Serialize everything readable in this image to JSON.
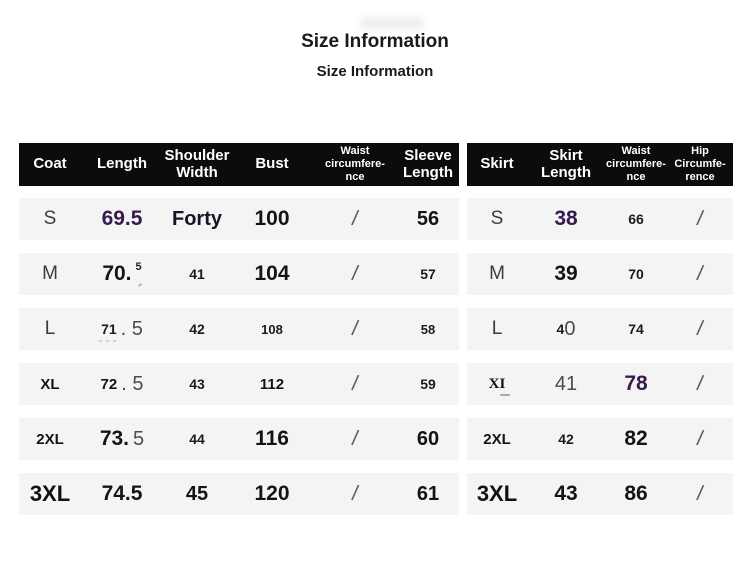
{
  "title": "Size Information",
  "subtitle": "Size Information",
  "colors": {
    "accent_purple": "#371a4f",
    "header_bg": "#0d0c0d",
    "row_bg": "#f4f4f5"
  },
  "coat_table": {
    "headers": [
      "Coat",
      "Length",
      "Shoulder\nWidth",
      "Bust",
      "Waist\ncircumfere-\nnce",
      "Sleeve\nLength"
    ],
    "rows": [
      {
        "size": "S",
        "length": "69.5",
        "shoulder": "Forty",
        "bust": "100",
        "waist": "/",
        "sleeve": "56"
      },
      {
        "size": "M",
        "length": "70.",
        "length_tail": "5",
        "shoulder": "41",
        "bust": "104",
        "waist": "/",
        "sleeve": "57"
      },
      {
        "size": "L",
        "length": "71",
        "length_tail": ". 5",
        "shoulder": "42",
        "bust": "108",
        "waist": "/",
        "sleeve": "58"
      },
      {
        "size": "XL",
        "length": "72",
        "length_tail": ". 5",
        "shoulder": "43",
        "bust": "112",
        "waist": "/",
        "sleeve": "59"
      },
      {
        "size": "2XL",
        "length": "73.",
        "length_tail": "5",
        "shoulder": "44",
        "bust": "116",
        "waist": "/",
        "sleeve": "60"
      },
      {
        "size": "3XL",
        "length": "74.5",
        "shoulder": "45",
        "bust": "120",
        "waist": "/",
        "sleeve": "61"
      }
    ]
  },
  "skirt_table": {
    "headers": [
      "Skirt",
      "Skirt\nLength",
      "Waist\ncircumfere-\nnce",
      "Hip\nCircumfe-\nrence"
    ],
    "rows": [
      {
        "size": "S",
        "length": "38",
        "waist": "66",
        "hip": "/"
      },
      {
        "size": "M",
        "length": "39",
        "waist": "70",
        "hip": "/"
      },
      {
        "size": "L",
        "length": "4",
        "length_tail": "0",
        "waist": "74",
        "hip": "/"
      },
      {
        "size": "XI",
        "length": "41",
        "waist": "78",
        "hip": "/"
      },
      {
        "size": "2XL",
        "length": "42",
        "waist": "82",
        "hip": "/"
      },
      {
        "size": "3XL",
        "length": "43",
        "waist": "86",
        "hip": "/"
      }
    ]
  }
}
